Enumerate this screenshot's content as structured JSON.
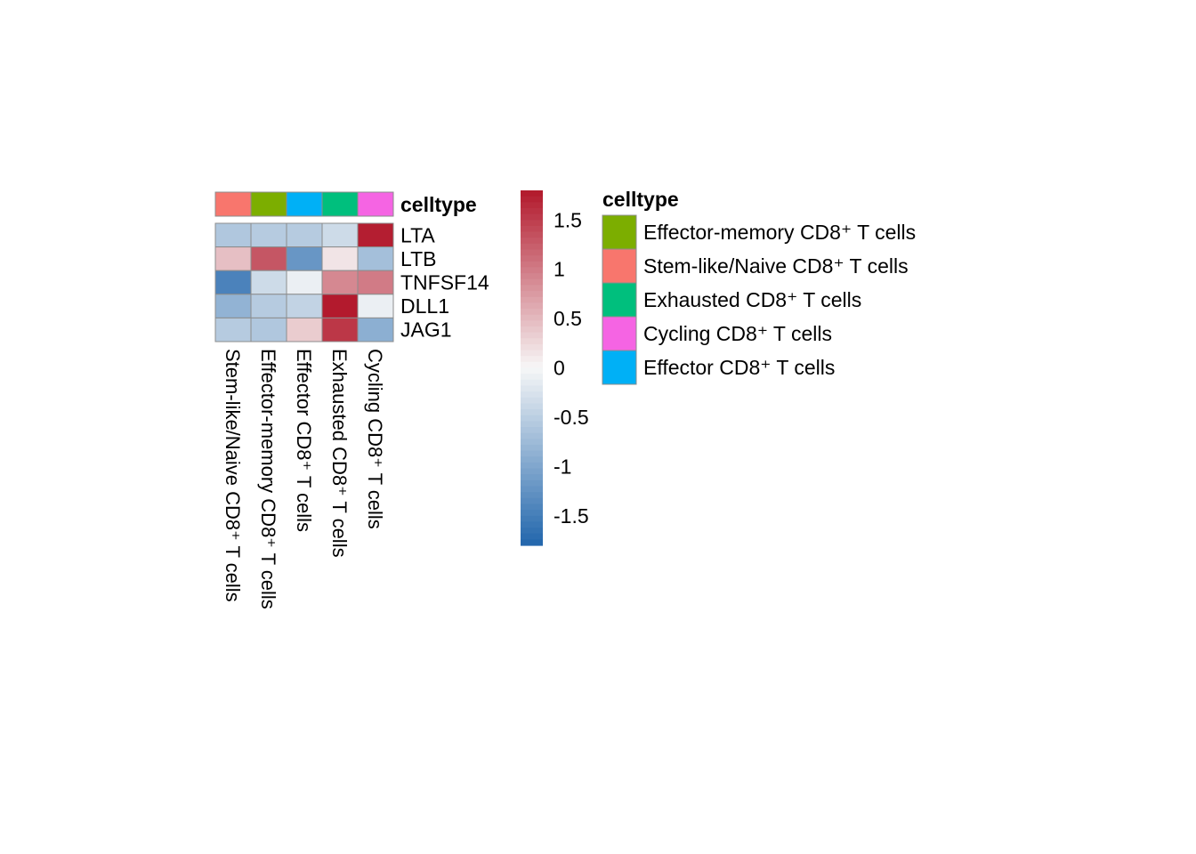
{
  "chart_data": {
    "type": "heatmap",
    "annotation_title": "celltype",
    "columns": [
      "Stem-like/Naive CD8⁺ T cells",
      "Effector-memory CD8⁺ T cells",
      "Effector CD8⁺ T cells",
      "Exhausted CD8⁺ T cells",
      "Cycling CD8⁺ T cells"
    ],
    "rows": [
      "LTA",
      "LTB",
      "TNFSF14",
      "DLL1",
      "JAG1"
    ],
    "values": [
      [
        -0.6,
        -0.55,
        -0.55,
        -0.35,
        1.75
      ],
      [
        0.45,
        1.3,
        -1.2,
        0.15,
        -0.7
      ],
      [
        -1.45,
        -0.35,
        -0.1,
        0.9,
        1.0
      ],
      [
        -0.85,
        -0.55,
        -0.45,
        1.78,
        -0.1
      ],
      [
        -0.55,
        -0.6,
        0.35,
        1.55,
        -0.9
      ]
    ],
    "column_colors": [
      "#F8766D",
      "#7CAE00",
      "#00B0F6",
      "#00BF7D",
      "#F564E3"
    ],
    "legend": [
      {
        "label": "Effector-memory CD8⁺ T cells",
        "color": "#7CAE00"
      },
      {
        "label": "Stem-like/Naive CD8⁺ T cells",
        "color": "#F8766D"
      },
      {
        "label": "Exhausted CD8⁺ T cells",
        "color": "#00BF7D"
      },
      {
        "label": "Cycling CD8⁺ T cells",
        "color": "#F564E3"
      },
      {
        "label": "Effector CD8⁺ T cells",
        "color": "#00B0F6"
      }
    ],
    "color_scale": {
      "min": -1.8,
      "max": 1.8,
      "low_color": "#2166AC",
      "mid_color": "#F7F7F7",
      "high_color": "#B2182B",
      "ticks": [
        1.5,
        1,
        0.5,
        0,
        -0.5,
        -1,
        -1.5
      ],
      "tick_labels": [
        "1.5",
        "1",
        "0.5",
        "0",
        "-0.5",
        "-1",
        "-1.5"
      ]
    }
  }
}
